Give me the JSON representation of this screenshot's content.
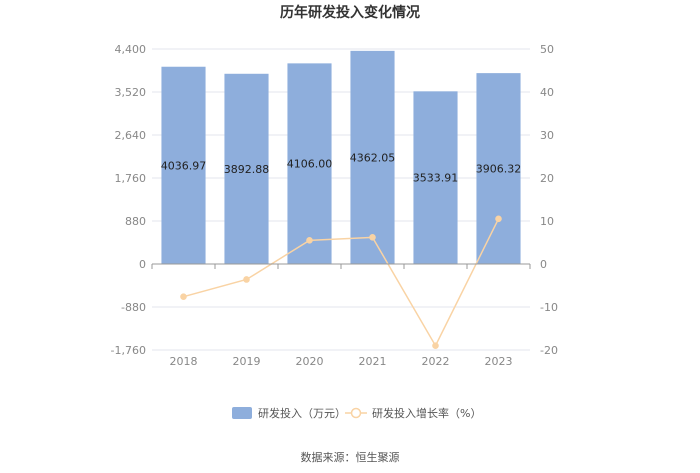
{
  "colors": {
    "bar": "#8eaedc",
    "line": "#f9d3a4",
    "grid": "#e3e6ee",
    "axis": "#999999"
  },
  "chart_data": {
    "type": "bar",
    "title": "历年研发投入变化情况",
    "categories": [
      "2018",
      "2019",
      "2020",
      "2021",
      "2022",
      "2023"
    ],
    "series": [
      {
        "name": "研发投入（万元）",
        "type": "bar",
        "axis": "left",
        "values": [
          4036.97,
          3892.88,
          4106.0,
          4362.05,
          3533.91,
          3906.32
        ],
        "labels": [
          "4036.97",
          "3892.88",
          "4106.00",
          "4362.05",
          "3533.91",
          "3906.32"
        ]
      },
      {
        "name": "研发投入增长率（%）",
        "type": "line",
        "axis": "right",
        "values": [
          -7.6,
          -3.6,
          5.5,
          6.2,
          -19.0,
          10.5
        ]
      }
    ],
    "y_left": {
      "ylim": [
        -1760,
        4400
      ],
      "ticks": [
        "4,400",
        "3,520",
        "2,640",
        "1,760",
        "880",
        "0",
        "-880",
        "-1,760"
      ]
    },
    "y_right": {
      "ylim": [
        -20,
        50
      ],
      "ticks": [
        "50",
        "40",
        "30",
        "20",
        "10",
        "0",
        "-10",
        "-20"
      ]
    },
    "grid": true,
    "legend": "bottom"
  },
  "source": "数据来源：恒生聚源"
}
